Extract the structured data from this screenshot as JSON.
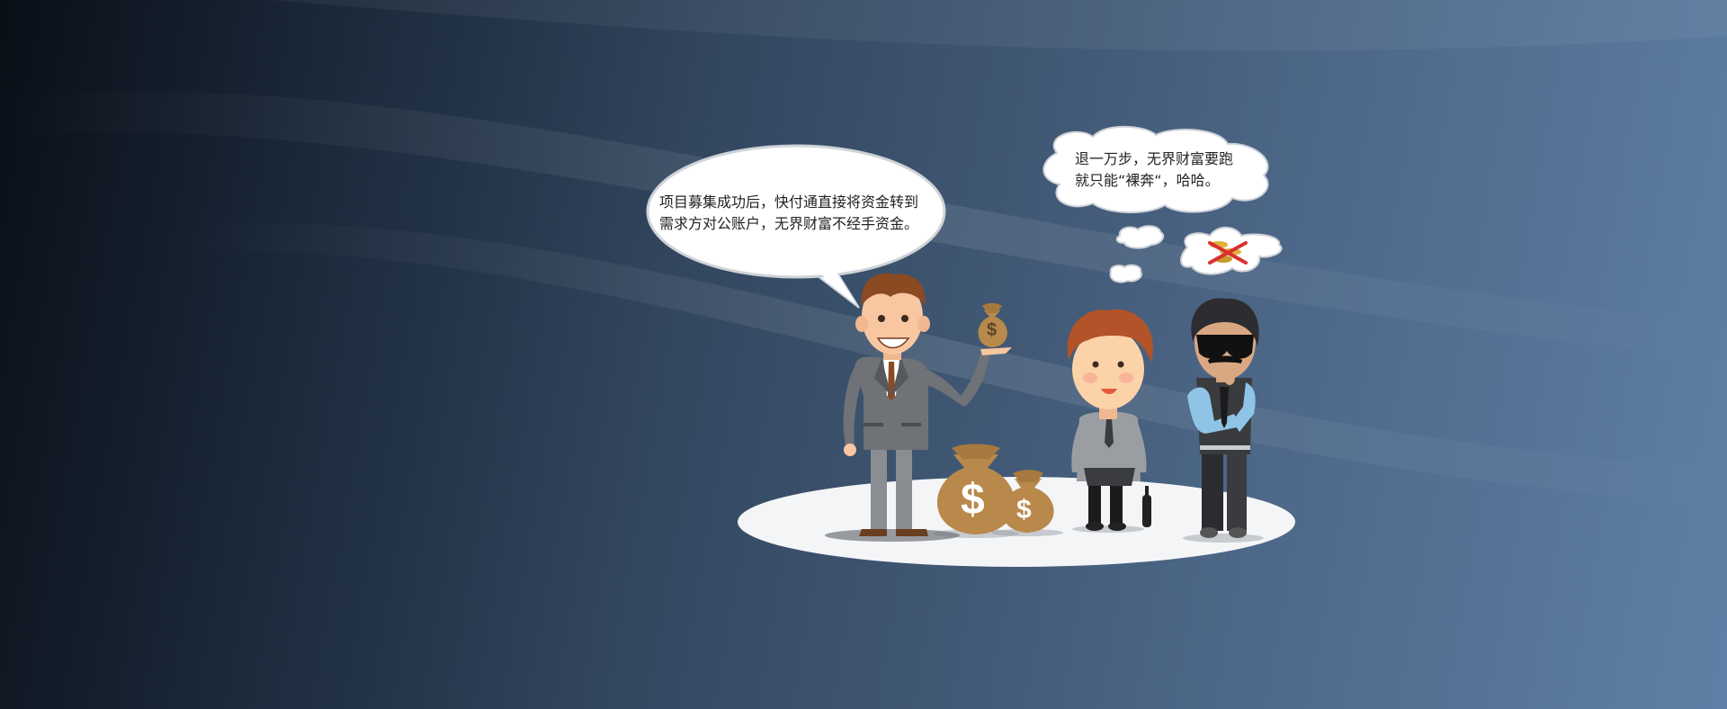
{
  "bubbles": {
    "left": {
      "line1": "项目募集成功后，快付通直接将资金转到",
      "line2": "需求方对公账户，无界财富不经手资金。"
    },
    "right": {
      "line1": "退一万步，无界财富要跑",
      "line2": "就只能“裸奔“，哈哈。"
    }
  },
  "icons": {
    "money_bag_symbol": "$"
  },
  "colors": {
    "background_dark": "#0a0f17",
    "background_light": "#5f80a6",
    "money_bag": "#b8894b",
    "suit": "#707378"
  }
}
